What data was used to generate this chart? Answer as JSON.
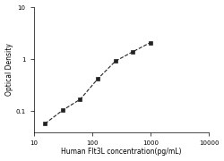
{
  "x": [
    15.625,
    31.25,
    62.5,
    125,
    250,
    500,
    1000
  ],
  "y": [
    0.058,
    0.105,
    0.17,
    0.42,
    0.92,
    1.4,
    2.1
  ],
  "xlim": [
    10,
    10000
  ],
  "ylim": [
    0.04,
    10
  ],
  "xlabel": "Human Flt3L concentration(pg/mL)",
  "ylabel": "Optical Density",
  "line_color": "#222222",
  "marker": "s",
  "marker_size": 3,
  "line_style": "--",
  "line_width": 0.8,
  "xlabel_fontsize": 5.5,
  "ylabel_fontsize": 5.5,
  "tick_fontsize": 5,
  "xticks": [
    10,
    100,
    1000,
    10000
  ],
  "xtick_labels": [
    "10",
    "100",
    "1000",
    "10000"
  ],
  "yticks": [
    0.1,
    1,
    10
  ],
  "ytick_labels": [
    "0.1",
    "1",
    "10"
  ]
}
